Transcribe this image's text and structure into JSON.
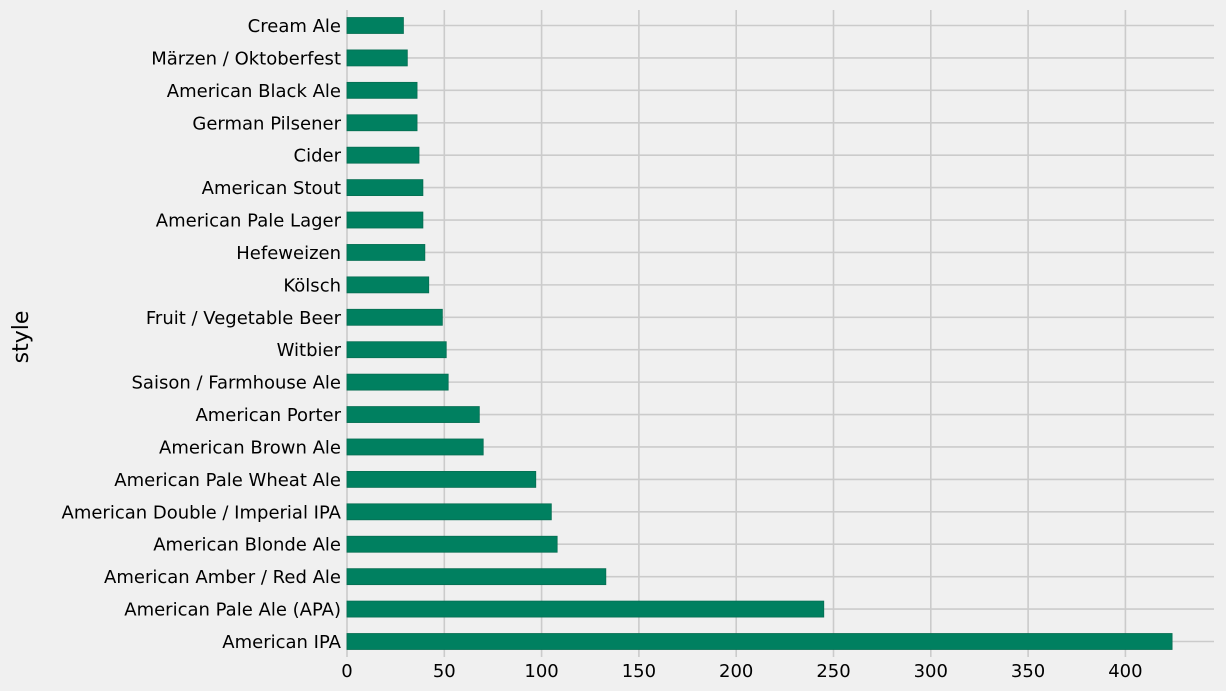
{
  "chart_data": {
    "type": "bar",
    "orientation": "horizontal",
    "title": "",
    "xlabel": "",
    "ylabel": "style",
    "xlim": [
      0,
      445
    ],
    "xticks": [
      0,
      50,
      100,
      150,
      200,
      250,
      300,
      350,
      400
    ],
    "grid": true,
    "legend": "none",
    "bar_color": "#008060",
    "background_color": "#f0f0f0",
    "grid_color": "#cbcbcb",
    "categories": [
      "Cream Ale",
      "Märzen / Oktoberfest",
      "American Black Ale",
      "German Pilsener",
      "Cider",
      "American Stout",
      "American Pale Lager",
      "Hefeweizen",
      "Kölsch",
      "Fruit / Vegetable Beer",
      "Witbier",
      "Saison / Farmhouse Ale",
      "American Porter",
      "American Brown Ale",
      "American Pale Wheat Ale",
      "American Double / Imperial IPA",
      "American Blonde Ale",
      "American Amber / Red Ale",
      "American Pale Ale (APA)",
      "American IPA"
    ],
    "values": [
      29,
      31,
      36,
      36,
      37,
      39,
      39,
      40,
      42,
      49,
      51,
      52,
      68,
      70,
      97,
      105,
      108,
      133,
      245,
      424
    ]
  }
}
